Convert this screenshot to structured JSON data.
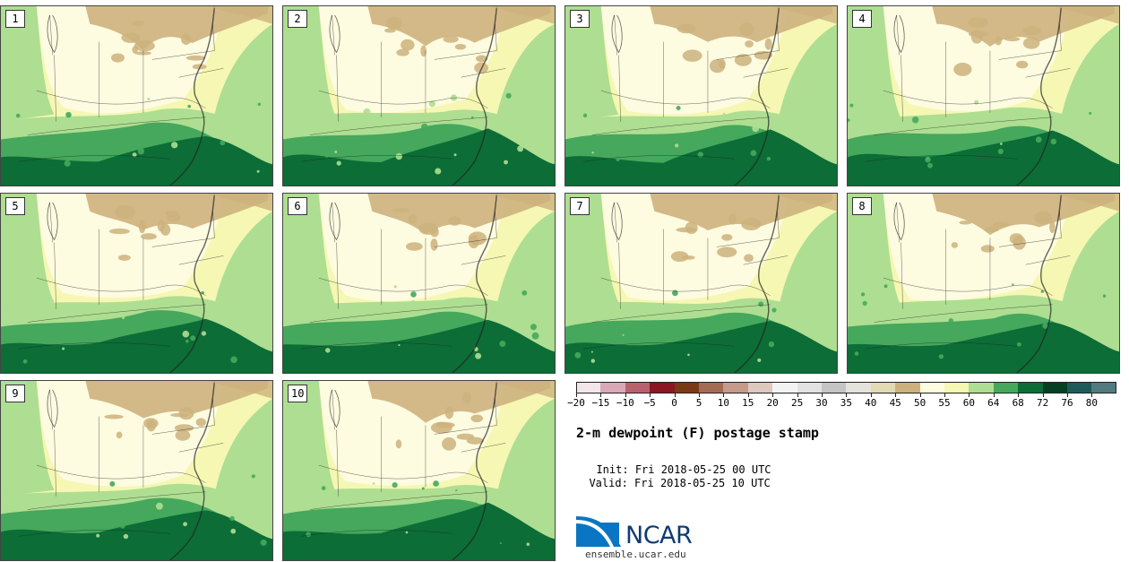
{
  "figure": {
    "title": "2-m dewpoint (F) postage stamp",
    "init_label": "Init:",
    "init_time": "Fri 2018-05-25 00 UTC",
    "valid_label": "Valid:",
    "valid_time": "Fri 2018-05-25 10 UTC"
  },
  "members": [
    "1",
    "2",
    "3",
    "4",
    "5",
    "6",
    "7",
    "8",
    "9",
    "10"
  ],
  "colorbar": {
    "tick_labels": [
      "−20",
      "−15",
      "−10",
      "−5",
      "0",
      "5",
      "10",
      "15",
      "20",
      "25",
      "30",
      "35",
      "40",
      "45",
      "50",
      "55",
      "60",
      "64",
      "68",
      "72",
      "76",
      "80"
    ],
    "colors": [
      "#f3e6ea",
      "#d9a9b8",
      "#b8626e",
      "#8a1721",
      "#7b3a16",
      "#a46b54",
      "#c49b8b",
      "#dfc8be",
      "#f3f3f3",
      "#e2e2e2",
      "#c4c4c4",
      "#e3e3dc",
      "#e2d9b5",
      "#cdb17d",
      "#fdfbe0",
      "#f5f7b3",
      "#aede91",
      "#45a85c",
      "#0c6d36",
      "#053f24",
      "#1f5a5b",
      "#517b7e"
    ]
  },
  "map_colors": {
    "dry": "#cdb17d",
    "pale": "#fdfbe0",
    "cream": "#f5f7b3",
    "light_green": "#aede91",
    "mid_green": "#45a85c",
    "dark_green": "#0c6d36"
  },
  "logo": {
    "name": "NCAR",
    "site": "ensemble.ucar.edu"
  }
}
